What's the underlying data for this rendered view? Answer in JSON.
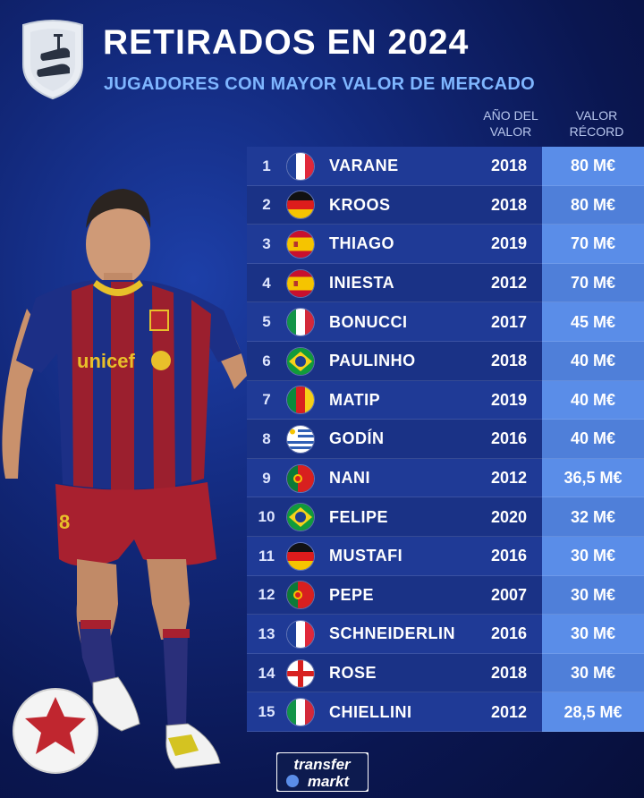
{
  "header": {
    "title": "RETIRADOS EN 2024",
    "subtitle": "JUGADORES CON MAYOR VALOR DE MERCADO",
    "col_year_line1": "AÑO DEL",
    "col_year_line2": "VALOR",
    "col_value_line1": "VALOR",
    "col_value_line2": "RÉCORD"
  },
  "rows": [
    {
      "rank": "1",
      "flag": "france",
      "name": "VARANE",
      "year": "2018",
      "value": "80 M€"
    },
    {
      "rank": "2",
      "flag": "germany",
      "name": "KROOS",
      "year": "2018",
      "value": "80 M€"
    },
    {
      "rank": "3",
      "flag": "spain",
      "name": "THIAGO",
      "year": "2019",
      "value": "70 M€"
    },
    {
      "rank": "4",
      "flag": "spain",
      "name": "INIESTA",
      "year": "2012",
      "value": "70 M€"
    },
    {
      "rank": "5",
      "flag": "italy",
      "name": "BONUCCI",
      "year": "2017",
      "value": "45 M€"
    },
    {
      "rank": "6",
      "flag": "brazil",
      "name": "PAULINHO",
      "year": "2018",
      "value": "40 M€"
    },
    {
      "rank": "7",
      "flag": "cameroon",
      "name": "MATIP",
      "year": "2019",
      "value": "40 M€"
    },
    {
      "rank": "8",
      "flag": "uruguay",
      "name": "GODÍN",
      "year": "2016",
      "value": "40 M€"
    },
    {
      "rank": "9",
      "flag": "portugal",
      "name": "NANI",
      "year": "2012",
      "value": "36,5 M€"
    },
    {
      "rank": "10",
      "flag": "brazil",
      "name": "FELIPE",
      "year": "2020",
      "value": "32 M€"
    },
    {
      "rank": "11",
      "flag": "germany",
      "name": "MUSTAFI",
      "year": "2016",
      "value": "30 M€"
    },
    {
      "rank": "12",
      "flag": "portugal",
      "name": "PEPE",
      "year": "2007",
      "value": "30 M€"
    },
    {
      "rank": "13",
      "flag": "france",
      "name": "SCHNEIDERLIN",
      "year": "2016",
      "value": "30 M€"
    },
    {
      "rank": "14",
      "flag": "england",
      "name": "ROSE",
      "year": "2018",
      "value": "30 M€"
    },
    {
      "rank": "15",
      "flag": "italy",
      "name": "CHIELLINI",
      "year": "2012",
      "value": "28,5 M€"
    }
  ],
  "player_shirt": {
    "sponsor": "unicef",
    "number": "8"
  },
  "brand": {
    "line1": "transfer",
    "line2": "markt"
  },
  "colors": {
    "accent": "#7fb6ff",
    "row_value": "#5a8de8",
    "row_bg": "#1f3a96"
  }
}
